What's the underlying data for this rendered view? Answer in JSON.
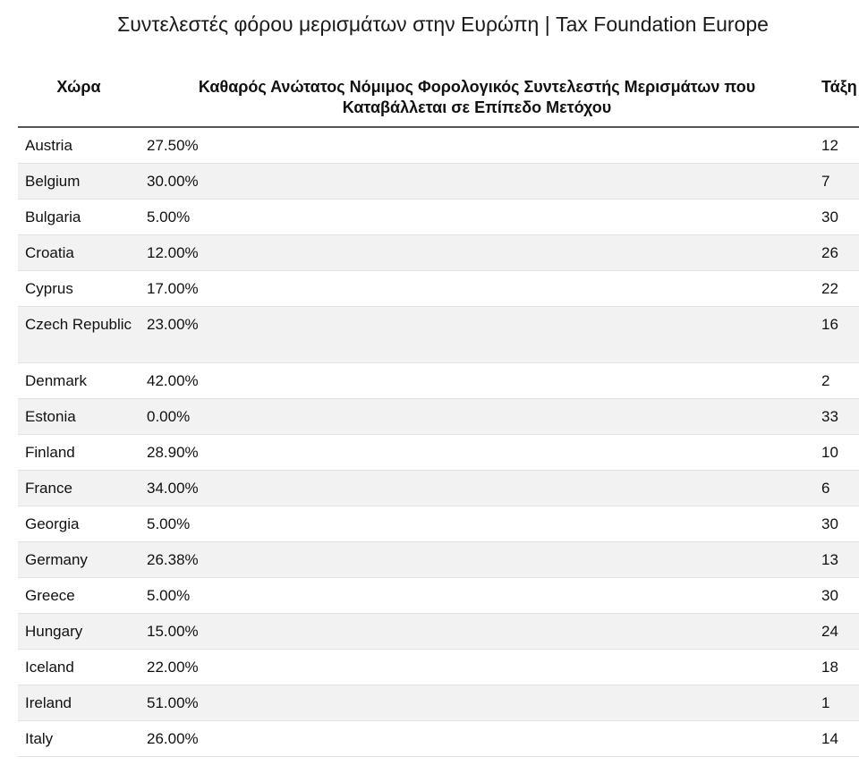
{
  "title": "Συντελεστές φόρου μερισμάτων στην Ευρώπη | Tax Foundation Europe",
  "headers": {
    "country": "Χώρα",
    "rate": "Καθαρός Ανώτατος Νόμιμος Φορολογικός Συντελεστής Μερισμάτων που Καταβάλλεται σε Επίπεδο Μετόχου",
    "rank": "Τάξη"
  },
  "rows": [
    {
      "country": "Austria",
      "rate": "27.50%",
      "rank": "12"
    },
    {
      "country": "Belgium",
      "rate": "30.00%",
      "rank": "7"
    },
    {
      "country": "Bulgaria",
      "rate": "5.00%",
      "rank": "30"
    },
    {
      "country": "Croatia",
      "rate": "12.00%",
      "rank": "26"
    },
    {
      "country": "Cyprus",
      "rate": "17.00%",
      "rank": "22"
    },
    {
      "country": "Czech Republic",
      "rate": "23.00%",
      "rank": "16"
    },
    {
      "country": "Denmark",
      "rate": "42.00%",
      "rank": "2"
    },
    {
      "country": "Estonia",
      "rate": "0.00%",
      "rank": "33"
    },
    {
      "country": "Finland",
      "rate": "28.90%",
      "rank": "10"
    },
    {
      "country": "France",
      "rate": "34.00%",
      "rank": "6"
    },
    {
      "country": "Georgia",
      "rate": "5.00%",
      "rank": "30"
    },
    {
      "country": "Germany",
      "rate": "26.38%",
      "rank": "13"
    },
    {
      "country": "Greece",
      "rate": "5.00%",
      "rank": "30"
    },
    {
      "country": "Hungary",
      "rate": "15.00%",
      "rank": "24"
    },
    {
      "country": "Iceland",
      "rate": "22.00%",
      "rank": "18"
    },
    {
      "country": "Ireland",
      "rate": "51.00%",
      "rank": "1"
    },
    {
      "country": "Italy",
      "rate": "26.00%",
      "rank": "14"
    }
  ]
}
